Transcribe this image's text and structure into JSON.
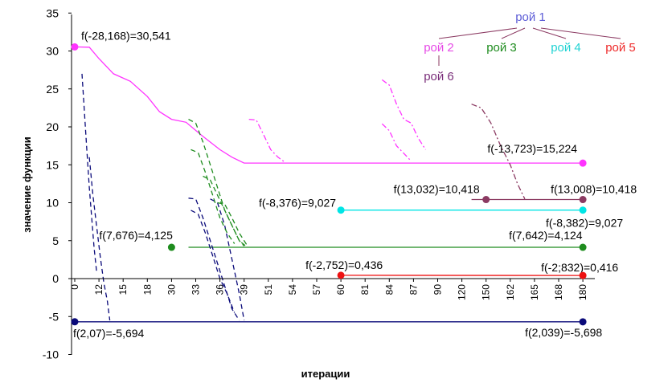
{
  "chart_data": {
    "type": "line",
    "title": "",
    "xlabel": "итерации",
    "ylabel": "значение функции",
    "ylim": [
      -10,
      35
    ],
    "ytick_labels": [
      "-10",
      "-5",
      "0",
      "5",
      "10",
      "15",
      "20",
      "25",
      "30",
      "35"
    ],
    "xtick_labels": [
      "0",
      "12",
      "15",
      "18",
      "30",
      "33",
      "36",
      "39",
      "51",
      "54",
      "57",
      "60",
      "81",
      "84",
      "87",
      "90",
      "120",
      "150",
      "162",
      "165",
      "168",
      "180"
    ],
    "legend": {
      "root": {
        "label": "рой 1",
        "color": "#5b5bd6"
      },
      "children": [
        {
          "label": "рой 2",
          "color": "#e64be6"
        },
        {
          "label": "рой 3",
          "color": "#1e8c1e"
        },
        {
          "label": "рой 4",
          "color": "#22d3d3"
        },
        {
          "label": "рой 5",
          "color": "#ee2a2a"
        }
      ],
      "subchild": {
        "label": "рой 6",
        "color": "#7a2e7a"
      }
    },
    "markers": [
      {
        "swarm": "рой 2",
        "color": "#ff33ff",
        "y": 30.541,
        "x_label": "0",
        "label": "f(-28,168)=30,541"
      },
      {
        "swarm": "рой 2",
        "color": "#ff33ff",
        "y": 15.224,
        "x_label": "180",
        "label": "f(-13,723)=15,224"
      },
      {
        "swarm": "рой 6",
        "color": "#8b3a62",
        "y": 10.418,
        "x_label": "150",
        "label": "f(13,032)=10,418"
      },
      {
        "swarm": "рой 6",
        "color": "#8b3a62",
        "y": 10.418,
        "x_label": "180",
        "label": "f(13,008)=10,418"
      },
      {
        "swarm": "рой 4",
        "color": "#00e5e5",
        "y": 9.027,
        "x_label": "60",
        "label": "f(-8,376)=9,027"
      },
      {
        "swarm": "рой 4",
        "color": "#00e5e5",
        "y": 9.027,
        "x_label": "180",
        "label": "f(-8,382)=9,027"
      },
      {
        "swarm": "рой 3",
        "color": "#1e8c1e",
        "y": 4.125,
        "x_label": "30",
        "label": "f(7,676)=4,125"
      },
      {
        "swarm": "рой 3",
        "color": "#1e8c1e",
        "y": 4.124,
        "x_label": "180",
        "label": "f(7,642)=4,124"
      },
      {
        "swarm": "рой 5",
        "color": "#ee1111",
        "y": 0.436,
        "x_label": "60",
        "label": "f(-2,752)=0,436"
      },
      {
        "swarm": "рой 5",
        "color": "#ee1111",
        "y": 0.416,
        "x_label": "180",
        "label": "f(-2;832)=0,416"
      },
      {
        "swarm": "рой 1",
        "color": "#0a0a7a",
        "y": -5.694,
        "x_label": "0",
        "label": "f(2,07)=-5,694"
      },
      {
        "swarm": "рой 1",
        "color": "#0a0a7a",
        "y": -5.698,
        "x_label": "180",
        "label": "f(2,039)=-5,698"
      }
    ],
    "series": [
      {
        "name": "рой 2 best",
        "color": "#ff33ff",
        "style": "solid",
        "points": [
          [
            0,
            30.541
          ],
          [
            0.6,
            30.5
          ],
          [
            1,
            29
          ],
          [
            1.6,
            27
          ],
          [
            2.3,
            26
          ],
          [
            3,
            24
          ],
          [
            3.5,
            22
          ],
          [
            4,
            21
          ],
          [
            4.6,
            20.6
          ],
          [
            5.2,
            19
          ],
          [
            6,
            17
          ],
          [
            6.5,
            16
          ],
          [
            7,
            15.224
          ],
          [
            21,
            15.224
          ]
        ]
      },
      {
        "name": "рой 6 best",
        "color": "#8b3a62",
        "style": "solid",
        "points": [
          [
            16.4,
            10.418
          ],
          [
            21,
            10.418
          ]
        ]
      },
      {
        "name": "рой 4 best",
        "color": "#00e5e5",
        "style": "solid",
        "points": [
          [
            11,
            9.027
          ],
          [
            21,
            9.027
          ]
        ]
      },
      {
        "name": "рой 3 best",
        "color": "#1e8c1e",
        "style": "solid",
        "points": [
          [
            4.7,
            4.125
          ],
          [
            21,
            4.124
          ]
        ]
      },
      {
        "name": "рой 5 best",
        "color": "#ee1111",
        "style": "solid",
        "points": [
          [
            11,
            0.436
          ],
          [
            21,
            0.416
          ]
        ]
      },
      {
        "name": "рой 1 best",
        "color": "#0a0a7a",
        "style": "solid",
        "points": [
          [
            0,
            -5.694
          ],
          [
            21,
            -5.698
          ]
        ]
      },
      {
        "name": "рой 1 a",
        "color": "#0a0a7a",
        "style": "dash",
        "points": [
          [
            0.3,
            27
          ],
          [
            0.4,
            22
          ],
          [
            0.5,
            17
          ],
          [
            0.6,
            12
          ],
          [
            0.7,
            8
          ],
          [
            0.8,
            4
          ],
          [
            0.9,
            1
          ]
        ]
      },
      {
        "name": "рой 1 b",
        "color": "#0a0a7a",
        "style": "dash",
        "points": [
          [
            0.6,
            16
          ],
          [
            0.75,
            11
          ],
          [
            0.9,
            7
          ],
          [
            1.05,
            3
          ],
          [
            1.2,
            -0.5
          ],
          [
            1.35,
            -3
          ],
          [
            1.45,
            -5.5
          ]
        ]
      },
      {
        "name": "рой 1 c",
        "color": "#0a0a7a",
        "style": "dash",
        "points": [
          [
            4.7,
            10.6
          ],
          [
            5.0,
            10.5
          ],
          [
            5.3,
            8
          ],
          [
            5.6,
            5
          ],
          [
            5.9,
            2
          ],
          [
            6.2,
            -1
          ],
          [
            6.5,
            -4
          ],
          [
            6.8,
            -5.5
          ]
        ]
      },
      {
        "name": "рой 1 d",
        "color": "#0a0a7a",
        "style": "dash",
        "points": [
          [
            4.8,
            9
          ],
          [
            5.1,
            8.5
          ],
          [
            5.4,
            6
          ],
          [
            5.7,
            3
          ],
          [
            6.0,
            0
          ],
          [
            6.3,
            -2
          ],
          [
            6.6,
            -4.5
          ]
        ]
      },
      {
        "name": "рой 1 e",
        "color": "#0a0a7a",
        "style": "dash",
        "points": [
          [
            5.6,
            10.5
          ],
          [
            5.9,
            10
          ],
          [
            6.2,
            7
          ],
          [
            6.4,
            4
          ],
          [
            6.6,
            1
          ],
          [
            6.8,
            -2
          ],
          [
            7.0,
            -5.5
          ]
        ]
      },
      {
        "name": "рой 3 a",
        "color": "#1e8c1e",
        "style": "dash",
        "points": [
          [
            4.7,
            21
          ],
          [
            5.0,
            20.5
          ],
          [
            5.3,
            18
          ],
          [
            5.6,
            15
          ],
          [
            5.9,
            12
          ],
          [
            6.2,
            9
          ],
          [
            6.5,
            7
          ],
          [
            6.8,
            5
          ],
          [
            7.1,
            4.2
          ]
        ]
      },
      {
        "name": "рой 3 b",
        "color": "#1e8c1e",
        "style": "dash",
        "points": [
          [
            4.8,
            17
          ],
          [
            5.1,
            16.6
          ],
          [
            5.4,
            14
          ],
          [
            5.7,
            11
          ],
          [
            6.0,
            8
          ],
          [
            6.3,
            6
          ],
          [
            6.6,
            4.6
          ]
        ]
      },
      {
        "name": "рой 3 c",
        "color": "#1e8c1e",
        "style": "dash",
        "points": [
          [
            5.3,
            13.5
          ],
          [
            5.6,
            13
          ],
          [
            5.9,
            11
          ],
          [
            6.2,
            9
          ],
          [
            6.5,
            7
          ],
          [
            6.8,
            5
          ],
          [
            7.0,
            4.3
          ]
        ]
      },
      {
        "name": "рой 3 d",
        "color": "#1e8c1e",
        "style": "dash",
        "points": [
          [
            5.9,
            10
          ],
          [
            6.2,
            9.8
          ],
          [
            6.5,
            8
          ],
          [
            6.8,
            6
          ],
          [
            7.1,
            4.5
          ]
        ]
      },
      {
        "name": "рой 2 a",
        "color": "#ff33ff",
        "style": "dashdot",
        "points": [
          [
            7.2,
            21
          ],
          [
            7.5,
            20.9
          ],
          [
            7.8,
            19
          ],
          [
            8.1,
            17
          ],
          [
            8.4,
            16
          ],
          [
            8.7,
            15.3
          ]
        ]
      },
      {
        "name": "рой 2 b",
        "color": "#ff33ff",
        "style": "dashdot",
        "points": [
          [
            12.7,
            26.2
          ],
          [
            13.0,
            25.5
          ],
          [
            13.3,
            23
          ],
          [
            13.6,
            21
          ],
          [
            13.9,
            20.5
          ],
          [
            14.2,
            18.5
          ],
          [
            14.5,
            17
          ]
        ]
      },
      {
        "name": "рой 2 c",
        "color": "#ff33ff",
        "style": "dashdot",
        "points": [
          [
            12.7,
            20.4
          ],
          [
            13.0,
            19.5
          ],
          [
            13.3,
            17.5
          ],
          [
            13.6,
            16.5
          ],
          [
            13.9,
            15.5
          ]
        ]
      },
      {
        "name": "рой 6 a",
        "color": "#8b3a62",
        "style": "dashdot",
        "points": [
          [
            16.4,
            23
          ],
          [
            16.8,
            22.5
          ],
          [
            17.2,
            20.5
          ],
          [
            17.6,
            17.5
          ],
          [
            18.0,
            15
          ],
          [
            18.3,
            12.5
          ],
          [
            18.6,
            10.5
          ]
        ]
      }
    ]
  }
}
